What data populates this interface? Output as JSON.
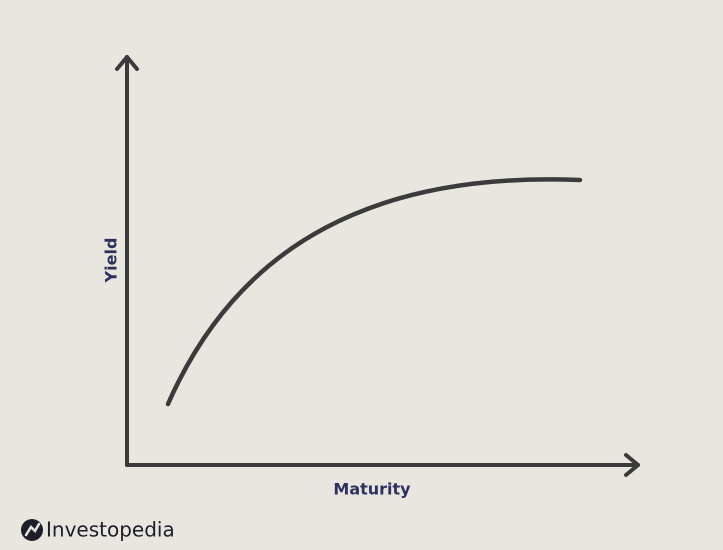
{
  "axes": {
    "y_label": "Yield",
    "x_label": "Maturity"
  },
  "brand": "Investopedia"
}
